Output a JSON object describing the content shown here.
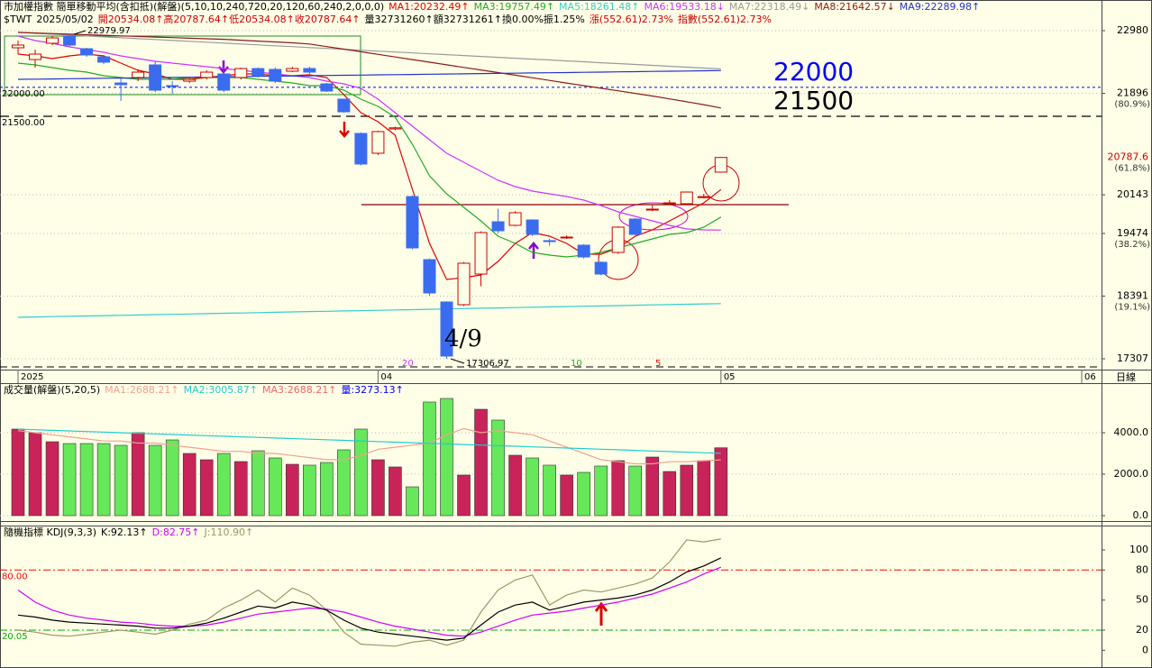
{
  "chart_data": [
    {
      "type": "candlestick",
      "title": "市加權指數 簡單移動平均(含扣抵)(解盤)(5,10,10,240,720,20,120,60,240,2,0,0,0)",
      "info": [
        {
          "text": "$TWT",
          "color": "#000000"
        },
        {
          "text": "2025/05/02",
          "color": "#000000"
        },
        {
          "text": "開20534.08↑高20787.64↑低20534.08↑收20787.64↑",
          "color": "#cc0000"
        },
        {
          "text": "量32731260↑額32731261↑換0.00%振1.25%",
          "color": "#000000"
        },
        {
          "text": "漲(552.61)2.73%",
          "color": "#cc0000"
        },
        {
          "text": "指數(552.61)2.73%",
          "color": "#cc0000"
        }
      ],
      "categories": [
        "2025",
        null,
        null,
        null,
        null,
        null,
        null,
        null,
        null,
        null,
        null,
        null,
        null,
        null,
        null,
        null,
        null,
        null,
        null,
        null,
        null,
        "04",
        null,
        null,
        null,
        null,
        null,
        null,
        null,
        null,
        null,
        null,
        null,
        null,
        null,
        null,
        null,
        null,
        null,
        null,
        null,
        "05"
      ],
      "x_extra": "06",
      "timeframe": "日線",
      "open": [
        22684,
        22481,
        22762,
        22886,
        22668,
        22528,
        22076,
        22170,
        22388,
        22030,
        22107,
        22170,
        22232,
        22170,
        22325,
        22310,
        22279,
        22325,
        22060,
        21796,
        21203,
        20861,
        21281,
        20112,
        19021,
        18289,
        18242,
        18772,
        19676,
        19614,
        19707,
        19350,
        19400,
        19271,
        18975,
        19146,
        19723,
        19880,
        19990,
        19988,
        20100,
        20534.08
      ],
      "high": [
        22809,
        22653,
        22886,
        22900,
        22684,
        22559,
        22185,
        22310,
        22450,
        22107,
        22170,
        22294,
        22300,
        22341,
        22341,
        22341,
        22356,
        22356,
        22076,
        21796,
        21220,
        21250,
        21320,
        20130,
        19040,
        18300,
        18980,
        19510,
        19900,
        19860,
        19720,
        19380,
        19440,
        19290,
        18990,
        19600,
        19740,
        19960,
        20050,
        20200,
        20160,
        20787.64
      ],
      "low": [
        22575,
        22341,
        22731,
        22700,
        22528,
        22400,
        21764,
        22107,
        21920,
        21889,
        22076,
        22138,
        21920,
        22138,
        22170,
        22076,
        22263,
        22232,
        21920,
        21560,
        20650,
        20830,
        21260,
        19200,
        18400,
        17306.97,
        18220,
        18560,
        19480,
        19600,
        19430,
        19260,
        19380,
        19040,
        18750,
        19120,
        19440,
        19860,
        19970,
        19970,
        20080,
        20534.08
      ],
      "close": [
        22731,
        22575,
        22855,
        22731,
        22559,
        22435,
        22045,
        22263,
        21951,
        22014,
        22138,
        22263,
        21951,
        22325,
        22201,
        22107,
        22325,
        22263,
        21936,
        21577,
        20674,
        21235,
        21300,
        19224,
        18445,
        17354,
        18959,
        19489,
        19520,
        19832,
        19458,
        19333,
        19411,
        19068,
        18772,
        19583,
        19458,
        19894,
        20003,
        20190,
        20110,
        20787.64
      ],
      "up_color": "#cc0000",
      "down_color": "#3b6cf0",
      "series": [
        {
          "name": "MA1:20232.49↑",
          "color": "#e00000",
          "values": [
            22575,
            22544,
            22497,
            22544,
            22575,
            22544,
            22419,
            22294,
            22232,
            22138,
            22138,
            22170,
            22201,
            22232,
            22232,
            22201,
            22201,
            22216,
            22170,
            21873,
            21562,
            21406,
            21172,
            20237,
            19302,
            18679,
            18710,
            18757,
            18990,
            19302,
            19489,
            19427,
            19302,
            19115,
            19115,
            19224,
            19427,
            19536,
            19692,
            19847,
            20003,
            20232.49
          ]
        },
        {
          "name": "MA3:19757.49↑",
          "color": "#22aa22",
          "values": [
            22419,
            22388,
            22341,
            22294,
            22263,
            22201,
            22170,
            22138,
            22138,
            22138,
            22170,
            22170,
            22170,
            22170,
            22138,
            22107,
            22076,
            22029,
            22029,
            21951,
            21796,
            21671,
            21484,
            21016,
            20471,
            20159,
            19925,
            19692,
            19427,
            19302,
            19146,
            19099,
            19068,
            19099,
            19146,
            19224,
            19302,
            19380,
            19458,
            19489,
            19583,
            19757.49
          ]
        },
        {
          "name": "MA5:18261.48↑",
          "color": "#33cccc",
          "values": [
            18024,
            18030,
            18036,
            18041,
            18047,
            18053,
            18059,
            18065,
            18070,
            18076,
            18082,
            18088,
            18094,
            18099,
            18105,
            18111,
            18117,
            18123,
            18128,
            18134,
            18140,
            18146,
            18152,
            18157,
            18163,
            18169,
            18175,
            18181,
            18186,
            18192,
            18198,
            18204,
            18210,
            18215,
            18221,
            18227,
            18233,
            18239,
            18244,
            18250,
            18256,
            18261.48
          ]
        },
        {
          "name": "MA6:19533.18↓",
          "color": "#cc33ff",
          "values": [
            22886,
            22809,
            22762,
            22699,
            22653,
            22606,
            22544,
            22497,
            22450,
            22419,
            22388,
            22357,
            22325,
            22294,
            22263,
            22232,
            22201,
            22170,
            22107,
            22060,
            21983,
            21796,
            21562,
            21328,
            21094,
            20861,
            20705,
            20549,
            20393,
            20284,
            20206,
            20159,
            20112,
            20050,
            19957,
            19847,
            19770,
            19692,
            19614,
            19551,
            19536,
            19533.18
          ]
        },
        {
          "name": "MA7:22318.49↓",
          "color": "#999999",
          "values": [
            22950,
            22935,
            22919,
            22904,
            22888,
            22873,
            22858,
            22842,
            22827,
            22811,
            22796,
            22781,
            22765,
            22750,
            22734,
            22719,
            22704,
            22688,
            22673,
            22657,
            22642,
            22627,
            22611,
            22596,
            22580,
            22565,
            22550,
            22534,
            22519,
            22503,
            22488,
            22473,
            22457,
            22442,
            22426,
            22411,
            22396,
            22380,
            22365,
            22349,
            22334,
            22318.49
          ]
        },
        {
          "name": "MA8:21642.57↓",
          "color": "#8b1a1a",
          "values": [
            22950,
            22940,
            22930,
            22920,
            22910,
            22900,
            22890,
            22880,
            22870,
            22860,
            22850,
            22840,
            22830,
            22815,
            22800,
            22785,
            22770,
            22750,
            22705,
            22660,
            22615,
            22570,
            22525,
            22480,
            22435,
            22390,
            22345,
            22300,
            22255,
            22210,
            22165,
            22120,
            22075,
            22030,
            21985,
            21940,
            21895,
            21850,
            21800,
            21750,
            21700,
            21642.57
          ]
        },
        {
          "name": "MA9:22289.98↑",
          "color": "#2233cc",
          "values": [
            22138,
            22142,
            22145,
            22149,
            22153,
            22157,
            22160,
            22164,
            22168,
            22171,
            22175,
            22179,
            22182,
            22186,
            22190,
            22194,
            22197,
            22201,
            22205,
            22208,
            22212,
            22216,
            22219,
            22223,
            22227,
            22231,
            22234,
            22238,
            22242,
            22245,
            22249,
            22253,
            22256,
            22260,
            22264,
            22268,
            22271,
            22275,
            22279,
            22282,
            22286,
            22289.98
          ]
        }
      ],
      "ylim": [
        17120,
        23479
      ],
      "yticks": [
        22980,
        21896,
        20143,
        19474,
        18391,
        17307
      ],
      "last_price": {
        "value": 20787.64,
        "label": "20787.6",
        "color": "#cc0000"
      },
      "fib": [
        {
          "value": 21896,
          "label": "(80.9%)"
        },
        {
          "value": 20787.64,
          "label": "(61.8%)"
        },
        {
          "value": 19474,
          "label": "(38.2%)"
        },
        {
          "value": 18391,
          "label": "(19.1%)"
        }
      ],
      "levels": [
        {
          "value": 22000,
          "label": "22000.00",
          "color": "#0000ff"
        },
        {
          "value": 21500,
          "label": "21500.00",
          "color": "#000000"
        }
      ],
      "resistance": {
        "value": 19972,
        "color": "#8b0000"
      },
      "annotations": [
        "22979.97",
        "17306.97",
        "4/9"
      ],
      "period_marks": [
        {
          "text": "20",
          "color": "#cc33ff"
        },
        {
          "text": "10",
          "color": "#22aa22"
        },
        {
          "text": "5",
          "color": "#e00000"
        }
      ],
      "grid": true
    },
    {
      "type": "bar",
      "title": "成交量(解盤)(5,20,5)",
      "series": [
        {
          "name": "量:3273.13↑",
          "color": "#0000ff",
          "values": [
            4174,
            4000,
            3565,
            3478,
            3478,
            3478,
            3391,
            4000,
            3391,
            3652,
            3000,
            2696,
            3000,
            2609,
            3130,
            2783,
            2478,
            2435,
            2565,
            3174,
            4174,
            2696,
            2348,
            1391,
            5478,
            5652,
            1957,
            5130,
            4609,
            2913,
            2783,
            2435,
            1957,
            2087,
            2391,
            2652,
            2391,
            2826,
            2130,
            2435,
            2652,
            3273.13
          ]
        },
        {
          "name": "MA1:2688.21↑",
          "color": "#f0a090",
          "values": [
            4100,
            4000,
            3900,
            3800,
            3700,
            3600,
            3600,
            3500,
            3500,
            3400,
            3300,
            3200,
            3100,
            3100,
            3000,
            3000,
            2900,
            2800,
            2700,
            2700,
            2900,
            3200,
            3300,
            3400,
            3500,
            3900,
            4200,
            4000,
            4100,
            4000,
            3900,
            3600,
            3300,
            3000,
            2700,
            2600,
            2500,
            2500,
            2600,
            2600,
            2650,
            2688.21
          ]
        },
        {
          "name": "MA2:3005.87↑",
          "color": "#22cccc",
          "values": [
            4170,
            4142,
            4113,
            4085,
            4056,
            4028,
            4000,
            3971,
            3943,
            3914,
            3886,
            3858,
            3829,
            3801,
            3772,
            3744,
            3716,
            3687,
            3659,
            3630,
            3602,
            3574,
            3545,
            3517,
            3488,
            3460,
            3432,
            3403,
            3375,
            3346,
            3318,
            3290,
            3261,
            3233,
            3204,
            3176,
            3148,
            3119,
            3091,
            3062,
            3034,
            3005.87
          ]
        }
      ],
      "legend_extra": {
        "text": "MA3:2688.21↑",
        "color": "#ee6666"
      },
      "up_color": "#c8245a",
      "down_color": "#66e85a",
      "ylim": [
        0,
        6260
      ],
      "yticks": [
        {
          "value": 4000,
          "label": "4000.0"
        },
        {
          "value": 2000,
          "label": "2000.0"
        },
        {
          "value": 0,
          "label": "0.0"
        }
      ],
      "grid": true
    },
    {
      "type": "line",
      "title": "隨機指標 KDJ(9,3,3)",
      "series": [
        {
          "name": "K:92.13↑",
          "color": "#000000",
          "values": [
            35,
            33,
            30,
            28,
            27,
            26,
            25,
            24,
            22,
            22,
            24,
            27,
            32,
            38,
            44,
            42,
            48,
            45,
            40,
            30,
            22,
            18,
            16,
            14,
            12,
            10,
            12,
            25,
            38,
            45,
            48,
            40,
            44,
            48,
            50,
            52,
            55,
            60,
            68,
            78,
            84,
            92.13
          ]
        },
        {
          "name": "D:82.75↑",
          "color": "#cc00ff",
          "values": [
            60,
            48,
            40,
            35,
            32,
            30,
            28,
            27,
            25,
            24,
            24,
            25,
            28,
            32,
            36,
            38,
            40,
            42,
            41,
            38,
            33,
            28,
            24,
            21,
            18,
            15,
            14,
            18,
            24,
            30,
            35,
            37,
            39,
            42,
            45,
            48,
            52,
            56,
            62,
            68,
            76,
            82.75
          ]
        },
        {
          "name": "J:110.90↑",
          "color": "#999966",
          "values": [
            20,
            18,
            15,
            14,
            16,
            18,
            20,
            18,
            16,
            20,
            26,
            30,
            42,
            50,
            60,
            48,
            62,
            55,
            40,
            18,
            6,
            5,
            4,
            8,
            10,
            5,
            10,
            38,
            60,
            70,
            75,
            45,
            55,
            60,
            58,
            62,
            66,
            72,
            88,
            110,
            108,
            110.9
          ]
        }
      ],
      "ref_lines": [
        {
          "value": 80,
          "label": "80.00",
          "color": "#ff0000"
        },
        {
          "value": 20.05,
          "label": "20.05",
          "color": "#00aa00"
        }
      ],
      "ylim": [
        -17.75,
        119.8
      ],
      "yticks": [
        100,
        80,
        50,
        20,
        0
      ],
      "grid": false
    }
  ]
}
